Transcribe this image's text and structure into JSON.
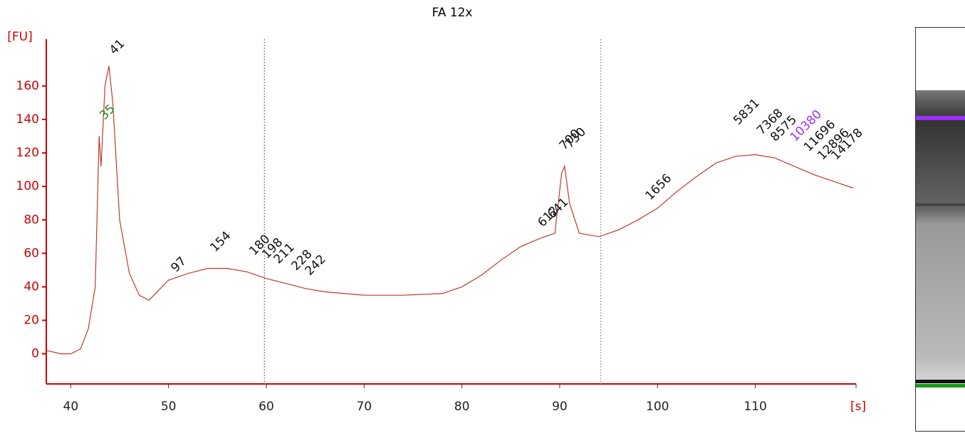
{
  "chart_data": {
    "type": "line",
    "title": "FA 12x",
    "y_label": "[FU]",
    "x_label": "[s]",
    "color": "#c0392b",
    "axis_color": "#d00000",
    "xlim": [
      37.5,
      120.3
    ],
    "ylim": [
      -18,
      188
    ],
    "xticks": [
      40,
      50,
      60,
      70,
      80,
      90,
      100,
      110
    ],
    "yticks": [
      0,
      20,
      40,
      60,
      80,
      100,
      120,
      140,
      160
    ],
    "x": [
      37.5,
      39,
      40,
      41,
      41.8,
      42.5,
      42.9,
      43.1,
      43.5,
      43.9,
      44.3,
      45,
      46,
      47,
      48,
      49,
      50,
      52,
      54,
      56,
      58,
      60,
      62,
      64,
      66,
      70,
      74,
      78,
      80,
      82,
      84,
      86,
      88,
      89.5,
      90.2,
      90.5,
      91,
      92,
      94,
      96,
      98,
      100,
      102,
      104,
      106,
      108,
      110,
      112,
      114,
      116,
      118,
      120
    ],
    "y": [
      2,
      0,
      0,
      3,
      15,
      40,
      130,
      112,
      160,
      172,
      150,
      80,
      48,
      35,
      32,
      38,
      44,
      48,
      51,
      51,
      49,
      45,
      42,
      39,
      37,
      35,
      35,
      36,
      40,
      47,
      56,
      64,
      69,
      72,
      108,
      112,
      90,
      72,
      70,
      74,
      80,
      87,
      97,
      106,
      114,
      118,
      119,
      117,
      112,
      107,
      103,
      99
    ],
    "markers": [
      {
        "x": 59.8,
        "color": "#5555aa"
      },
      {
        "x": 94.2,
        "color": "#888888"
      }
    ],
    "peaks": [
      {
        "label": "35",
        "x": 43.2,
        "y": 141,
        "color": "#1a8a1a"
      },
      {
        "label": "41",
        "x": 44.2,
        "y": 180,
        "color": "#111111"
      },
      {
        "label": "97",
        "x": 50.5,
        "y": 50,
        "color": "#111111"
      },
      {
        "label": "154",
        "x": 54.5,
        "y": 62,
        "color": "#111111"
      },
      {
        "label": "180",
        "x": 58.5,
        "y": 60,
        "color": "#111111"
      },
      {
        "label": "198",
        "x": 59.8,
        "y": 58,
        "color": "#111111"
      },
      {
        "label": "211",
        "x": 61,
        "y": 55,
        "color": "#111111"
      },
      {
        "label": "228",
        "x": 62.8,
        "y": 51,
        "color": "#111111"
      },
      {
        "label": "242",
        "x": 64.2,
        "y": 48,
        "color": "#111111"
      },
      {
        "label": "612",
        "x": 88,
        "y": 77,
        "color": "#111111"
      },
      {
        "label": "641",
        "x": 89,
        "y": 82,
        "color": "#111111"
      },
      {
        "label": "700",
        "x": 90.2,
        "y": 123,
        "color": "#111111"
      },
      {
        "label": "730",
        "x": 90.8,
        "y": 124,
        "color": "#111111"
      },
      {
        "label": "1656",
        "x": 99,
        "y": 93,
        "color": "#111111"
      },
      {
        "label": "5831",
        "x": 108,
        "y": 138,
        "color": "#111111"
      },
      {
        "label": "7368",
        "x": 110.4,
        "y": 132,
        "color": "#111111"
      },
      {
        "label": "8575",
        "x": 111.8,
        "y": 128,
        "color": "#111111"
      },
      {
        "label": "10380",
        "x": 113.8,
        "y": 128,
        "color": "#9b30ff"
      },
      {
        "label": "11696",
        "x": 115.2,
        "y": 122,
        "color": "#111111"
      },
      {
        "label": "12896",
        "x": 116.6,
        "y": 117,
        "color": "#111111"
      },
      {
        "label": "14178",
        "x": 118,
        "y": 117,
        "color": "#111111"
      }
    ]
  }
}
